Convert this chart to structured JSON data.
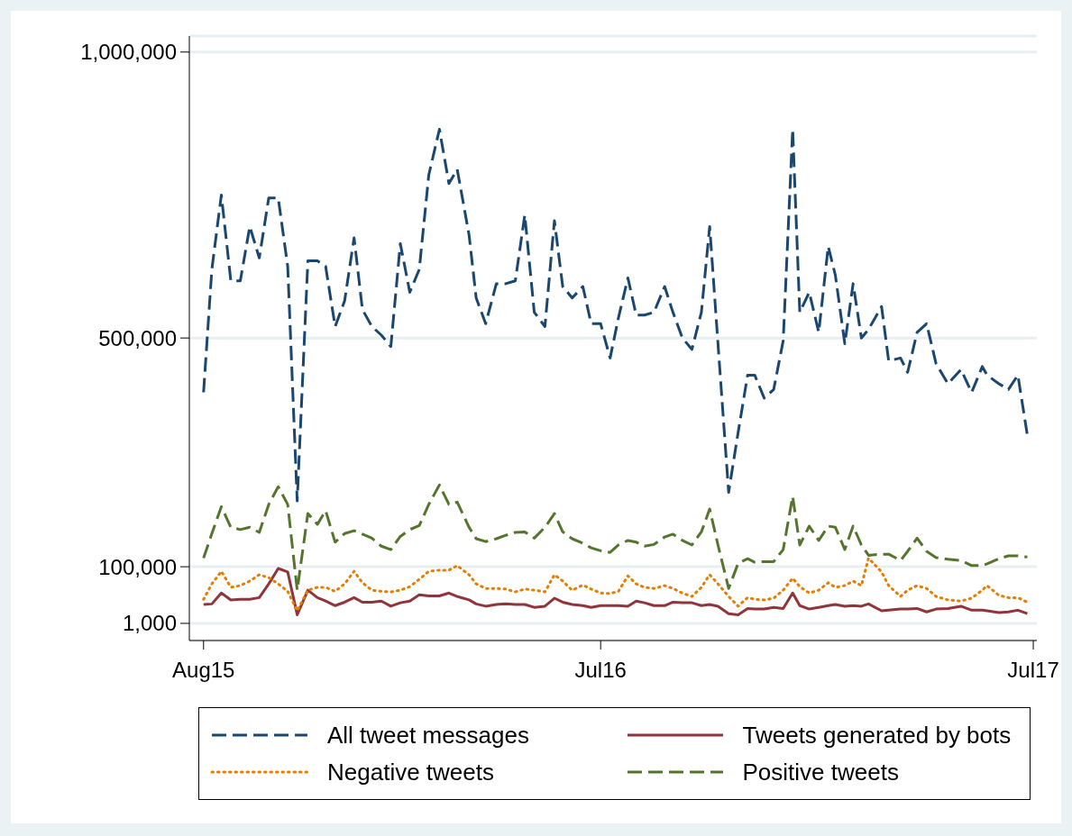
{
  "chart_data": {
    "type": "line",
    "x": [
      "2015-08-01",
      "2015-08-08",
      "2015-08-16",
      "2015-08-24",
      "2015-09-01",
      "2015-09-09",
      "2015-09-17",
      "2015-09-25",
      "2015-10-03",
      "2015-10-11",
      "2015-10-19",
      "2015-10-28",
      "2015-11-05",
      "2015-11-12",
      "2015-11-20",
      "2015-11-28",
      "2015-12-06",
      "2015-12-13",
      "2015-12-21",
      "2015-12-29",
      "2016-01-06",
      "2016-01-14",
      "2016-01-22",
      "2016-01-30",
      "2016-02-07",
      "2016-02-16",
      "2016-02-24",
      "2016-03-02",
      "2016-03-12",
      "2016-03-18",
      "2016-03-26",
      "2016-04-04",
      "2016-04-12",
      "2016-04-20",
      "2016-04-28",
      "2016-05-06",
      "2016-05-15",
      "2016-05-23",
      "2016-05-30",
      "2016-06-07",
      "2016-06-16",
      "2016-06-23",
      "2016-07-01",
      "2016-07-09",
      "2016-07-16",
      "2016-07-24",
      "2016-07-31",
      "2016-08-07",
      "2016-08-15",
      "2016-08-24",
      "2016-08-31",
      "2016-09-08",
      "2016-09-16",
      "2016-09-24",
      "2016-10-01",
      "2016-10-08",
      "2016-10-17",
      "2016-10-25",
      "2016-11-02",
      "2016-11-08",
      "2016-11-16",
      "2016-11-24",
      "2016-12-02",
      "2016-12-10",
      "2016-12-16",
      "2016-12-24",
      "2017-01-01",
      "2017-01-09",
      "2017-01-15",
      "2017-01-23",
      "2017-01-30",
      "2017-02-06",
      "2017-02-12",
      "2017-02-23",
      "2017-03-01",
      "2017-03-11",
      "2017-03-17",
      "2017-03-25",
      "2017-04-02",
      "2017-04-10",
      "2017-04-20",
      "2017-05-01",
      "2017-05-10",
      "2017-05-19",
      "2017-05-23",
      "2017-06-02",
      "2017-06-10",
      "2017-06-18",
      "2017-06-26"
    ],
    "series": [
      {
        "name": "All tweet messages",
        "color": "#1a476f",
        "line_style": "dashed",
        "values": [
          405000,
          620000,
          750000,
          600000,
          600000,
          695000,
          640000,
          745000,
          745000,
          625000,
          215000,
          635000,
          635000,
          625000,
          520000,
          565000,
          675000,
          550000,
          520000,
          505000,
          485000,
          665000,
          580000,
          620000,
          785000,
          865000,
          770000,
          795000,
          680000,
          570000,
          525000,
          595000,
          595000,
          600000,
          715000,
          545000,
          520000,
          705000,
          590000,
          570000,
          590000,
          525000,
          525000,
          465000,
          535000,
          605000,
          540000,
          540000,
          545000,
          590000,
          545000,
          500000,
          480000,
          545000,
          695000,
          490000,
          230000,
          335000,
          435000,
          435000,
          395000,
          410000,
          495000,
          865000,
          545000,
          580000,
          510000,
          660000,
          610000,
          490000,
          595000,
          500000,
          515000,
          555000,
          460000,
          465000,
          440000,
          510000,
          525000,
          455000,
          420000,
          445000,
          405000,
          450000,
          435000,
          420000,
          410000,
          435000,
          330000
        ]
      },
      {
        "name": "Tweets generated by bots",
        "color": "#90353b",
        "line_style": "solid",
        "values": [
          34000,
          35000,
          54000,
          42000,
          43000,
          43000,
          46000,
          70000,
          97000,
          91000,
          16000,
          59000,
          46000,
          40000,
          32000,
          38000,
          46000,
          38000,
          38000,
          40000,
          31000,
          37000,
          40000,
          51000,
          49000,
          49000,
          54000,
          48000,
          42000,
          35000,
          31000,
          34000,
          35000,
          34000,
          34000,
          29000,
          31000,
          45000,
          38000,
          34000,
          32000,
          29000,
          32000,
          32000,
          32000,
          31000,
          40000,
          37000,
          32000,
          32000,
          38000,
          37000,
          37000,
          32000,
          34000,
          31000,
          18000,
          16000,
          27000,
          26000,
          26000,
          29000,
          27000,
          54000,
          32000,
          26000,
          29000,
          32000,
          34000,
          31000,
          32000,
          31000,
          35000,
          23000,
          24000,
          26000,
          26000,
          27000,
          21000,
          26000,
          27000,
          31000,
          24000,
          24000,
          23000,
          20000,
          21000,
          24000,
          18000
        ]
      },
      {
        "name": "Negative tweets",
        "color": "#e37e00",
        "line_style": "dotted",
        "values": [
          43000,
          70000,
          92000,
          64000,
          67000,
          75000,
          86000,
          81000,
          70000,
          57000,
          23000,
          59000,
          64000,
          64000,
          57000,
          70000,
          92000,
          72000,
          59000,
          57000,
          56000,
          59000,
          65000,
          78000,
          92000,
          94000,
          94000,
          102000,
          86000,
          70000,
          62000,
          62000,
          61000,
          56000,
          61000,
          59000,
          56000,
          86000,
          75000,
          59000,
          68000,
          61000,
          54000,
          53000,
          57000,
          84000,
          70000,
          64000,
          62000,
          67000,
          62000,
          54000,
          48000,
          64000,
          86000,
          70000,
          48000,
          31000,
          46000,
          43000,
          42000,
          45000,
          59000,
          80000,
          65000,
          54000,
          59000,
          72000,
          64000,
          67000,
          75000,
          67000,
          115000,
          91000,
          67000,
          48000,
          59000,
          67000,
          62000,
          48000,
          42000,
          40000,
          45000,
          59000,
          67000,
          50000,
          46000,
          46000,
          38000
        ]
      },
      {
        "name": "Positive tweets",
        "color": "#55752f",
        "line_style": "dashed",
        "values": [
          115000,
          158000,
          205000,
          169000,
          165000,
          169000,
          160000,
          209000,
          240000,
          209000,
          59000,
          193000,
          174000,
          198000,
          143000,
          158000,
          163000,
          157000,
          150000,
          136000,
          130000,
          153000,
          165000,
          172000,
          209000,
          243000,
          209000,
          213000,
          169000,
          149000,
          144000,
          149000,
          155000,
          160000,
          161000,
          150000,
          169000,
          193000,
          161000,
          149000,
          141000,
          133000,
          128000,
          125000,
          138000,
          146000,
          143000,
          136000,
          139000,
          152000,
          157000,
          146000,
          138000,
          161000,
          201000,
          138000,
          62000,
          106000,
          114000,
          108000,
          109000,
          109000,
          130000,
          223000,
          138000,
          171000,
          146000,
          171000,
          169000,
          130000,
          171000,
          138000,
          120000,
          122000,
          122000,
          111000,
          127000,
          150000,
          127000,
          116000,
          113000,
          111000,
          102000,
          102000,
          105000,
          114000,
          119000,
          119000,
          117000
        ]
      }
    ],
    "xlim": [
      "2015-07-20",
      "2017-07-04"
    ],
    "xticks": [
      {
        "value": "2015-08-01",
        "label": "Aug15"
      },
      {
        "value": "2016-07-01",
        "label": "Jul16"
      },
      {
        "value": "2017-07-01",
        "label": "Jul17"
      }
    ],
    "ylim": [
      -29000,
      1028000
    ],
    "yticks": [
      {
        "value": 1000,
        "label": "1,000"
      },
      {
        "value": 100000,
        "label": "100,000"
      },
      {
        "value": 500000,
        "label": "500,000"
      },
      {
        "value": 1000000,
        "label": "1,000,000"
      }
    ],
    "grid": "y",
    "legend": "bottom"
  }
}
